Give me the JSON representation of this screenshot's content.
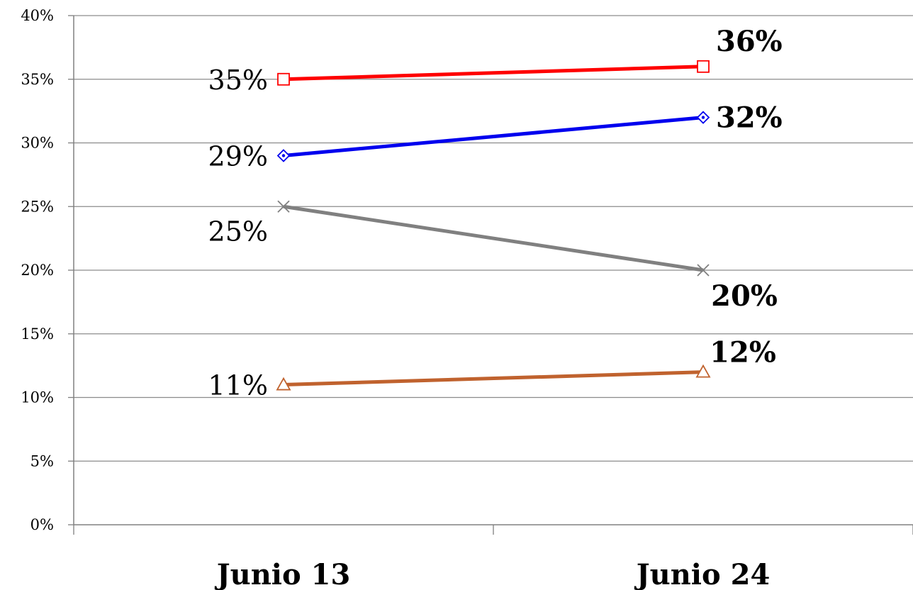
{
  "chart_data": {
    "type": "line",
    "categories": [
      "Junio 13",
      "Junio 24"
    ],
    "ylim": [
      0,
      40
    ],
    "y_ticks": [
      "0%",
      "5%",
      "10%",
      "15%",
      "20%",
      "25%",
      "30%",
      "35%",
      "40%"
    ],
    "grid": true,
    "legend": "none",
    "series": [
      {
        "color": "#ff0000",
        "marker": "square",
        "values": [
          35,
          36
        ],
        "labels": [
          "35%",
          "36%"
        ]
      },
      {
        "color": "#0000ee",
        "marker": "diamond",
        "values": [
          29,
          32
        ],
        "labels": [
          "29%",
          "32%"
        ]
      },
      {
        "color": "#808080",
        "marker": "x",
        "values": [
          25,
          20
        ],
        "labels": [
          "25%",
          "20%"
        ]
      },
      {
        "color": "#c0622e",
        "marker": "triangle",
        "values": [
          11,
          12
        ],
        "labels": [
          "11%",
          "12%"
        ]
      }
    ]
  }
}
